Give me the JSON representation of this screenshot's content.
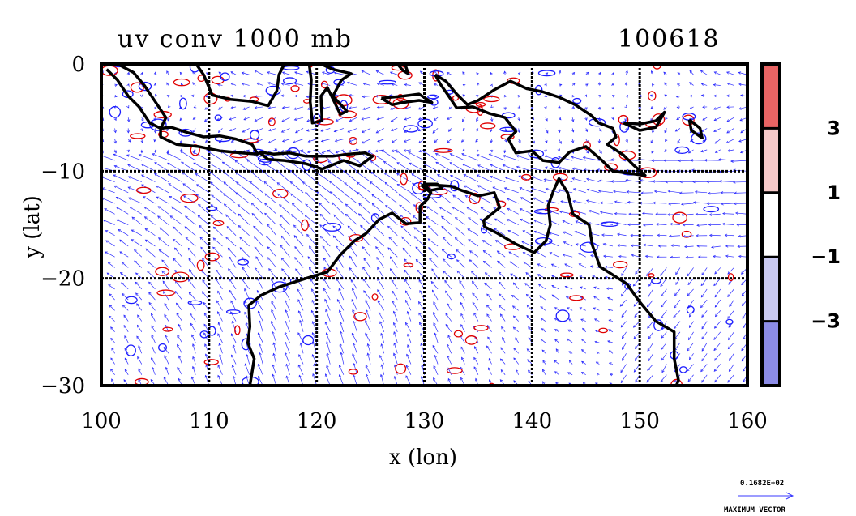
{
  "chart_data": {
    "type": "heatmap",
    "title": "uv conv 1000 mb",
    "date_label": "100618",
    "xlabel": "x (lon)",
    "ylabel": "y (lat)",
    "xlim": [
      100,
      160
    ],
    "ylim": [
      -30,
      0
    ],
    "x_ticks": [
      100,
      110,
      120,
      130,
      140,
      150,
      160
    ],
    "y_ticks": [
      0,
      -10,
      -20,
      -30
    ],
    "x_tick_labels": [
      "100",
      "110",
      "120",
      "130",
      "140",
      "150",
      "160"
    ],
    "y_tick_labels": [
      "0",
      "−10",
      "−20",
      "−30"
    ],
    "grid": true,
    "colorbar": {
      "position": "right",
      "levels": [
        -5,
        -3,
        -1,
        1,
        3,
        5
      ],
      "tick_labels": [
        "3",
        "1",
        "−1",
        "−3"
      ],
      "tick_values": [
        3,
        1,
        -1,
        -3
      ],
      "colors": [
        "#e86464",
        "#f5c8c8",
        "#ffffff",
        "#c8c8f0",
        "#8c8ce6"
      ]
    },
    "reference_vector": {
      "magnitude_label": "0.1682E+02",
      "caption": "MAXIMUM VECTOR"
    },
    "coastlines": [
      {
        "name": "sumatra",
        "points": [
          [
            100.5,
            -0.5
          ],
          [
            101.5,
            -1.5
          ],
          [
            102.5,
            -3
          ],
          [
            103.5,
            -4
          ],
          [
            104.5,
            -5.5
          ],
          [
            105.5,
            -6
          ],
          [
            106,
            -5
          ],
          [
            105,
            -3.5
          ],
          [
            104,
            -2
          ],
          [
            103,
            -0.8
          ],
          [
            101.5,
            0
          ]
        ]
      },
      {
        "name": "java",
        "points": [
          [
            105.5,
            -6
          ],
          [
            106.5,
            -5.9
          ],
          [
            108,
            -6.4
          ],
          [
            109.5,
            -6.8
          ],
          [
            111,
            -6.7
          ],
          [
            112.5,
            -7
          ],
          [
            114,
            -7.5
          ],
          [
            114.5,
            -8.4
          ],
          [
            113,
            -8.3
          ],
          [
            111,
            -8.1
          ],
          [
            109,
            -7.7
          ],
          [
            107,
            -7.5
          ],
          [
            105.5,
            -6.8
          ],
          [
            105.5,
            -6
          ]
        ]
      },
      {
        "name": "lesser-sunda",
        "points": [
          [
            114.6,
            -8.2
          ],
          [
            116,
            -8.4
          ],
          [
            117.5,
            -8.3
          ],
          [
            119,
            -8.6
          ],
          [
            120,
            -8.6
          ],
          [
            121.5,
            -8.6
          ],
          [
            123,
            -8.4
          ],
          [
            124.5,
            -8.3
          ],
          [
            125.2,
            -8.6
          ],
          [
            124,
            -9.5
          ],
          [
            122.5,
            -9
          ],
          [
            120.5,
            -9.8
          ],
          [
            119,
            -9.3
          ],
          [
            117,
            -9
          ],
          [
            115.5,
            -8.9
          ],
          [
            114.6,
            -8.2
          ]
        ]
      },
      {
        "name": "borneo",
        "points": [
          [
            108.8,
            0
          ],
          [
            109.5,
            -1
          ],
          [
            110.3,
            -2.9
          ],
          [
            112,
            -3.3
          ],
          [
            114,
            -3.5
          ],
          [
            115.5,
            -3.9
          ],
          [
            116.3,
            -2.5
          ],
          [
            116.5,
            -1
          ],
          [
            117,
            0
          ]
        ]
      },
      {
        "name": "sulawesi",
        "points": [
          [
            119.3,
            0
          ],
          [
            119.5,
            -1.5
          ],
          [
            119.4,
            -3.5
          ],
          [
            119.6,
            -5.5
          ],
          [
            120.5,
            -5.3
          ],
          [
            120.4,
            -3
          ],
          [
            121,
            -2.2
          ],
          [
            122.2,
            -4.7
          ],
          [
            122.8,
            -4.4
          ],
          [
            121.5,
            -3
          ],
          [
            122.3,
            -1.5
          ],
          [
            123.2,
            -0.9
          ],
          [
            121.5,
            -0.5
          ],
          [
            120.4,
            0
          ]
        ]
      },
      {
        "name": "seram-buru",
        "points": [
          [
            126,
            -3.2
          ],
          [
            127,
            -3.8
          ],
          [
            128,
            -3.6
          ],
          [
            129.5,
            -3.4
          ],
          [
            130.7,
            -3.6
          ],
          [
            129.5,
            -2.8
          ],
          [
            128,
            -3
          ],
          [
            126,
            -3.2
          ]
        ]
      },
      {
        "name": "halmahera",
        "points": [
          [
            127.5,
            0
          ],
          [
            128,
            -0.6
          ],
          [
            128.5,
            -0.9
          ],
          [
            128.2,
            0
          ]
        ]
      },
      {
        "name": "new-guinea",
        "points": [
          [
            131,
            -1
          ],
          [
            132,
            -1.6
          ],
          [
            133,
            -2.8
          ],
          [
            134,
            -3.8
          ],
          [
            135,
            -3.4
          ],
          [
            136.5,
            -2.4
          ],
          [
            138,
            -1.6
          ],
          [
            139.5,
            -2.3
          ],
          [
            141,
            -2.6
          ],
          [
            142.5,
            -3.1
          ],
          [
            144,
            -3.8
          ],
          [
            145.5,
            -4.8
          ],
          [
            146.2,
            -5.5
          ],
          [
            147.5,
            -6
          ],
          [
            147.8,
            -6.8
          ],
          [
            147,
            -7.5
          ],
          [
            148.5,
            -8.5
          ],
          [
            149.5,
            -9.5
          ],
          [
            150.5,
            -10.4
          ],
          [
            149,
            -10.2
          ],
          [
            147.5,
            -10
          ],
          [
            146.5,
            -9
          ],
          [
            145,
            -7.7
          ],
          [
            143.5,
            -8.2
          ],
          [
            142.5,
            -9.2
          ],
          [
            141,
            -9
          ],
          [
            140,
            -8.1
          ],
          [
            138.5,
            -8.3
          ],
          [
            137.8,
            -7
          ],
          [
            138.5,
            -6.3
          ],
          [
            137.5,
            -5
          ],
          [
            136,
            -4.6
          ],
          [
            134.5,
            -4
          ],
          [
            133,
            -4.1
          ],
          [
            132.2,
            -2.9
          ],
          [
            131.5,
            -1.9
          ],
          [
            131,
            -1
          ]
        ]
      },
      {
        "name": "new-britain",
        "points": [
          [
            148.5,
            -5.5
          ],
          [
            150,
            -5.6
          ],
          [
            151.5,
            -5.3
          ],
          [
            152.3,
            -4.5
          ],
          [
            151.5,
            -5.9
          ],
          [
            150,
            -6.2
          ],
          [
            148.5,
            -5.5
          ]
        ]
      },
      {
        "name": "australia",
        "points": [
          [
            129.7,
            -11.3
          ],
          [
            131,
            -11.3
          ],
          [
            132.5,
            -11.4
          ],
          [
            133.5,
            -11.8
          ],
          [
            135,
            -12.3
          ],
          [
            136.5,
            -12
          ],
          [
            137,
            -13.4
          ],
          [
            135.5,
            -14.6
          ],
          [
            135.6,
            -15.2
          ],
          [
            136.8,
            -15.8
          ],
          [
            138.5,
            -16.8
          ],
          [
            140.2,
            -17.6
          ],
          [
            141.3,
            -16.5
          ],
          [
            141.7,
            -15
          ],
          [
            141.5,
            -13.2
          ],
          [
            142,
            -11.8
          ],
          [
            142.5,
            -10.7
          ],
          [
            143.3,
            -12
          ],
          [
            143.8,
            -14
          ],
          [
            145.3,
            -15
          ],
          [
            145.6,
            -16.9
          ],
          [
            146.3,
            -18.9
          ],
          [
            148.8,
            -20.5
          ],
          [
            150,
            -22.2
          ],
          [
            151.5,
            -24
          ],
          [
            153.2,
            -25
          ],
          [
            153.2,
            -27.5
          ],
          [
            153.6,
            -29.5
          ],
          [
            153.4,
            -30
          ]
        ]
      },
      {
        "name": "australia-west",
        "points": [
          [
            113.8,
            -30
          ],
          [
            114.2,
            -27.5
          ],
          [
            113.6,
            -26
          ],
          [
            113.8,
            -24.5
          ],
          [
            113.7,
            -22.5
          ],
          [
            114.8,
            -21.6
          ],
          [
            116.5,
            -20.8
          ],
          [
            119,
            -20
          ],
          [
            121,
            -19.4
          ],
          [
            122.2,
            -17.8
          ],
          [
            123.5,
            -16.5
          ],
          [
            124.6,
            -15.8
          ],
          [
            125.8,
            -14.5
          ],
          [
            127,
            -13.9
          ],
          [
            128.3,
            -14.9
          ],
          [
            129.6,
            -14.8
          ],
          [
            129.6,
            -13.3
          ],
          [
            130.3,
            -12.6
          ],
          [
            130.6,
            -12
          ],
          [
            129.7,
            -11.3
          ]
        ]
      },
      {
        "name": "melville",
        "points": [
          [
            130,
            -11.2
          ],
          [
            131.2,
            -11.2
          ],
          [
            131.6,
            -11.6
          ],
          [
            130.5,
            -11.8
          ],
          [
            130,
            -11.2
          ]
        ]
      },
      {
        "name": "bougainville",
        "points": [
          [
            154.6,
            -5.2
          ],
          [
            155.6,
            -6
          ],
          [
            155.8,
            -6.9
          ],
          [
            154.8,
            -6.2
          ],
          [
            154.6,
            -5.2
          ]
        ]
      }
    ]
  }
}
